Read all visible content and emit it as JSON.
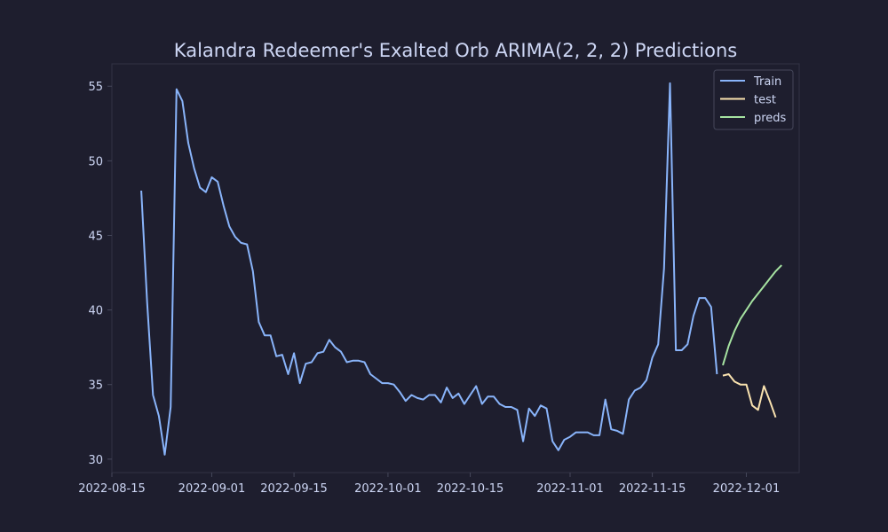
{
  "chart_data": {
    "type": "line",
    "title": "Kalandra Redeemer's Exalted Orb ARIMA(2, 2, 2) Predictions",
    "xlabel": "",
    "ylabel": "",
    "x_type": "date",
    "xlim": [
      "2022-08-15",
      "2022-12-10"
    ],
    "ylim": [
      29.1,
      56.5
    ],
    "x_ticks": [
      "2022-08-15",
      "2022-09-01",
      "2022-09-15",
      "2022-10-01",
      "2022-10-15",
      "2022-11-01",
      "2022-11-15",
      "2022-12-01"
    ],
    "y_ticks": [
      30,
      35,
      40,
      45,
      50,
      55
    ],
    "grid": false,
    "legend": {
      "position": "top-right"
    },
    "series": [
      {
        "name": "Train",
        "color": "#89b4fa",
        "points": [
          [
            "2022-08-20",
            48.0
          ],
          [
            "2022-08-21",
            40.5
          ],
          [
            "2022-08-22",
            34.3
          ],
          [
            "2022-08-23",
            32.9
          ],
          [
            "2022-08-24",
            30.3
          ],
          [
            "2022-08-25",
            33.5
          ],
          [
            "2022-08-26",
            54.8
          ],
          [
            "2022-08-27",
            54.0
          ],
          [
            "2022-08-28",
            51.2
          ],
          [
            "2022-08-29",
            49.5
          ],
          [
            "2022-08-30",
            48.2
          ],
          [
            "2022-08-31",
            47.9
          ],
          [
            "2022-09-01",
            48.9
          ],
          [
            "2022-09-02",
            48.6
          ],
          [
            "2022-09-03",
            47.0
          ],
          [
            "2022-09-04",
            45.6
          ],
          [
            "2022-09-05",
            44.9
          ],
          [
            "2022-09-06",
            44.5
          ],
          [
            "2022-09-07",
            44.4
          ],
          [
            "2022-09-08",
            42.6
          ],
          [
            "2022-09-09",
            39.2
          ],
          [
            "2022-09-10",
            38.3
          ],
          [
            "2022-09-11",
            38.3
          ],
          [
            "2022-09-12",
            36.9
          ],
          [
            "2022-09-13",
            37.0
          ],
          [
            "2022-09-14",
            35.7
          ],
          [
            "2022-09-15",
            37.1
          ],
          [
            "2022-09-16",
            35.1
          ],
          [
            "2022-09-17",
            36.4
          ],
          [
            "2022-09-18",
            36.5
          ],
          [
            "2022-09-19",
            37.1
          ],
          [
            "2022-09-20",
            37.2
          ],
          [
            "2022-09-21",
            38.0
          ],
          [
            "2022-09-22",
            37.5
          ],
          [
            "2022-09-23",
            37.2
          ],
          [
            "2022-09-24",
            36.5
          ],
          [
            "2022-09-25",
            36.6
          ],
          [
            "2022-09-26",
            36.6
          ],
          [
            "2022-09-27",
            36.5
          ],
          [
            "2022-09-28",
            35.7
          ],
          [
            "2022-09-29",
            35.4
          ],
          [
            "2022-09-30",
            35.1
          ],
          [
            "2022-10-01",
            35.1
          ],
          [
            "2022-10-02",
            35.0
          ],
          [
            "2022-10-03",
            34.5
          ],
          [
            "2022-10-04",
            33.9
          ],
          [
            "2022-10-05",
            34.3
          ],
          [
            "2022-10-06",
            34.1
          ],
          [
            "2022-10-07",
            34.0
          ],
          [
            "2022-10-08",
            34.3
          ],
          [
            "2022-10-09",
            34.3
          ],
          [
            "2022-10-10",
            33.8
          ],
          [
            "2022-10-11",
            34.8
          ],
          [
            "2022-10-12",
            34.1
          ],
          [
            "2022-10-13",
            34.4
          ],
          [
            "2022-10-14",
            33.7
          ],
          [
            "2022-10-15",
            34.3
          ],
          [
            "2022-10-16",
            34.9
          ],
          [
            "2022-10-17",
            33.7
          ],
          [
            "2022-10-18",
            34.2
          ],
          [
            "2022-10-19",
            34.2
          ],
          [
            "2022-10-20",
            33.7
          ],
          [
            "2022-10-21",
            33.5
          ],
          [
            "2022-10-22",
            33.5
          ],
          [
            "2022-10-23",
            33.3
          ],
          [
            "2022-10-24",
            31.2
          ],
          [
            "2022-10-25",
            33.4
          ],
          [
            "2022-10-26",
            32.9
          ],
          [
            "2022-10-27",
            33.6
          ],
          [
            "2022-10-28",
            33.4
          ],
          [
            "2022-10-29",
            31.2
          ],
          [
            "2022-10-30",
            30.6
          ],
          [
            "2022-10-31",
            31.3
          ],
          [
            "2022-11-01",
            31.5
          ],
          [
            "2022-11-02",
            31.8
          ],
          [
            "2022-11-03",
            31.8
          ],
          [
            "2022-11-04",
            31.8
          ],
          [
            "2022-11-05",
            31.6
          ],
          [
            "2022-11-06",
            31.6
          ],
          [
            "2022-11-07",
            34.0
          ],
          [
            "2022-11-08",
            32.0
          ],
          [
            "2022-11-09",
            31.9
          ],
          [
            "2022-11-10",
            31.7
          ],
          [
            "2022-11-11",
            34.0
          ],
          [
            "2022-11-12",
            34.6
          ],
          [
            "2022-11-13",
            34.8
          ],
          [
            "2022-11-14",
            35.3
          ],
          [
            "2022-11-15",
            36.8
          ],
          [
            "2022-11-16",
            37.7
          ],
          [
            "2022-11-17",
            42.8
          ],
          [
            "2022-11-18",
            55.2
          ],
          [
            "2022-11-19",
            37.3
          ],
          [
            "2022-11-20",
            37.3
          ],
          [
            "2022-11-21",
            37.7
          ],
          [
            "2022-11-22",
            39.6
          ],
          [
            "2022-11-23",
            40.8
          ],
          [
            "2022-11-24",
            40.8
          ],
          [
            "2022-11-25",
            40.2
          ],
          [
            "2022-11-26",
            35.7
          ]
        ]
      },
      {
        "name": "test",
        "color": "#f9e2af",
        "points": [
          [
            "2022-11-27",
            35.6
          ],
          [
            "2022-11-28",
            35.7
          ],
          [
            "2022-11-29",
            35.2
          ],
          [
            "2022-11-30",
            35.0
          ],
          [
            "2022-12-01",
            35.0
          ],
          [
            "2022-12-02",
            33.6
          ],
          [
            "2022-12-03",
            33.3
          ],
          [
            "2022-12-04",
            34.9
          ],
          [
            "2022-12-05",
            33.9
          ],
          [
            "2022-12-06",
            32.8
          ]
        ]
      },
      {
        "name": "preds",
        "color": "#a6e3a1",
        "points": [
          [
            "2022-11-27",
            36.3
          ],
          [
            "2022-11-28",
            37.6
          ],
          [
            "2022-11-29",
            38.6
          ],
          [
            "2022-11-30",
            39.4
          ],
          [
            "2022-12-01",
            40.0
          ],
          [
            "2022-12-02",
            40.6
          ],
          [
            "2022-12-03",
            41.1
          ],
          [
            "2022-12-04",
            41.6
          ],
          [
            "2022-12-05",
            42.1
          ],
          [
            "2022-12-06",
            42.6
          ],
          [
            "2022-12-07",
            43.0
          ]
        ]
      }
    ]
  }
}
